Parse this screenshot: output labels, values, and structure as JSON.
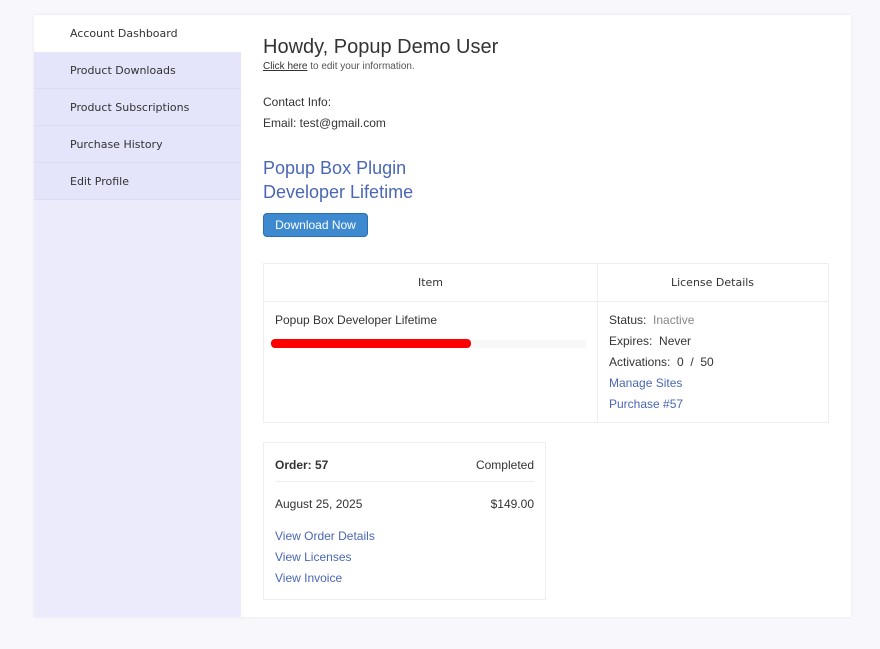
{
  "sidebar": {
    "items": [
      {
        "label": "Account Dashboard",
        "active": true
      },
      {
        "label": "Product Downloads"
      },
      {
        "label": "Product Subscriptions"
      },
      {
        "label": "Purchase History"
      },
      {
        "label": "Edit Profile"
      }
    ]
  },
  "header": {
    "greeting": "Howdy, Popup Demo User",
    "edit_link": "Click here",
    "edit_suffix": " to edit your information."
  },
  "contact": {
    "label": "Contact Info:",
    "email": "Email: test@gmail.com"
  },
  "product": {
    "title_line1": "Popup Box Plugin",
    "title_line2": "Developer Lifetime",
    "download_label": "Download Now"
  },
  "license_table": {
    "headers": [
      "Item",
      "License Details"
    ],
    "item_name": "Popup Box Developer Lifetime",
    "redaction_color": "#ff0000",
    "status_label": "Status:",
    "status_value": "Inactive",
    "expires_label": "Expires:",
    "expires_value": "Never",
    "activations_label": "Activations:",
    "activations_value": "0  /  50",
    "manage_sites": "Manage Sites",
    "purchase_link": "Purchase #57"
  },
  "order": {
    "label": "Order: 57",
    "status": "Completed",
    "date": "August 25, 2025",
    "total": "$149.00",
    "links": [
      "View Order Details",
      "View Licenses",
      "View Invoice"
    ]
  },
  "colors": {
    "accent": "#4a67b3",
    "button": "#3d8ad0"
  }
}
